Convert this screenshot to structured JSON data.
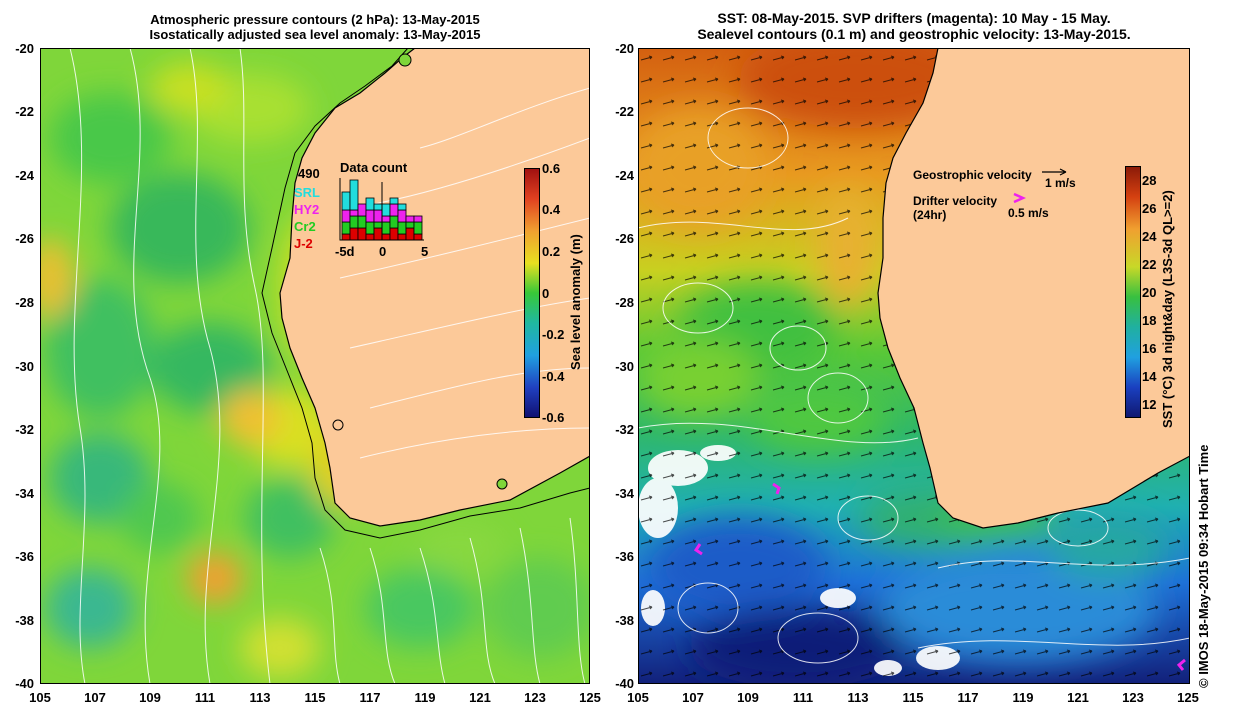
{
  "left_panel": {
    "title_line1": "Atmospheric pressure contours (2 hPa): 13-May-2015",
    "title_line2": "Isostatically adjusted sea level anomaly: 13-May-2015",
    "y_ticks": [
      "-20",
      "-22",
      "-24",
      "-26",
      "-28",
      "-30",
      "-32",
      "-34",
      "-36",
      "-38",
      "-40"
    ],
    "x_ticks": [
      "105",
      "107",
      "109",
      "111",
      "113",
      "115",
      "117",
      "119",
      "121",
      "123",
      "125"
    ],
    "colorbar": {
      "label": "Sea level anomaly (m)",
      "ticks": [
        "0.6",
        "0.4",
        "0.2",
        "0",
        "-0.2",
        "-0.4",
        "-0.6"
      ],
      "range": [
        -0.6,
        0.6
      ]
    },
    "inset": {
      "total_count": "490",
      "title": "Data count",
      "satellites": [
        {
          "name": "SRL",
          "color": "#22dddd"
        },
        {
          "name": "HY2",
          "color": "#ee22ee"
        },
        {
          "name": "Cr2",
          "color": "#22cc22"
        },
        {
          "name": "J-2",
          "color": "#dd0000"
        }
      ],
      "x_ticks": [
        "-5d",
        "0",
        "5"
      ],
      "bars": [
        {
          "day": -5,
          "J2": 1,
          "Cr2": 2,
          "HY2": 2,
          "SRL": 3
        },
        {
          "day": -4,
          "J2": 2,
          "Cr2": 2,
          "HY2": 1,
          "SRL": 5
        },
        {
          "day": -3,
          "J2": 2,
          "Cr2": 2,
          "HY2": 2,
          "SRL": 0
        },
        {
          "day": -2,
          "J2": 1,
          "Cr2": 2,
          "HY2": 2,
          "SRL": 2
        },
        {
          "day": -1,
          "J2": 2,
          "Cr2": 1,
          "HY2": 2,
          "SRL": 1
        },
        {
          "day": 0,
          "J2": 1,
          "Cr2": 2,
          "HY2": 1,
          "SRL": 2
        },
        {
          "day": 1,
          "J2": 2,
          "Cr2": 2,
          "HY2": 2,
          "SRL": 1
        },
        {
          "day": 2,
          "J2": 1,
          "Cr2": 2,
          "HY2": 2,
          "SRL": 1
        },
        {
          "day": 3,
          "J2": 2,
          "Cr2": 1,
          "HY2": 1,
          "SRL": 0
        },
        {
          "day": 4,
          "J2": 1,
          "Cr2": 2,
          "HY2": 1,
          "SRL": 0
        }
      ]
    }
  },
  "right_panel": {
    "title_line1": "SST: 08-May-2015. SVP drifters (magenta): 10 May - 15 May.",
    "title_line2": "Sealevel contours (0.1 m) and geostrophic velocity: 13-May-2015.",
    "y_ticks": [
      "-20",
      "-22",
      "-24",
      "-26",
      "-28",
      "-30",
      "-32",
      "-34",
      "-36",
      "-38",
      "-40"
    ],
    "x_ticks": [
      "105",
      "107",
      "109",
      "111",
      "113",
      "115",
      "117",
      "119",
      "121",
      "123",
      "125"
    ],
    "colorbar": {
      "label": "SST (°C) 3d night&day (L3S-3d QL>=2)",
      "ticks": [
        "28",
        "26",
        "24",
        "22",
        "20",
        "18",
        "16",
        "14",
        "12"
      ],
      "range": [
        11,
        29
      ]
    },
    "legend": {
      "geo_label": "Geostrophic velocity",
      "geo_scale": "1 m/s",
      "drifter_label": "Drifter velocity",
      "drifter_sub": "(24hr)",
      "drifter_scale": "0.5 m/s"
    }
  },
  "credit": "© IMOS 18-May-2015 09:34 Hobart Time",
  "colors": {
    "land": "#fcc999",
    "coast": "#000000",
    "drifter": "#ee22ee"
  }
}
